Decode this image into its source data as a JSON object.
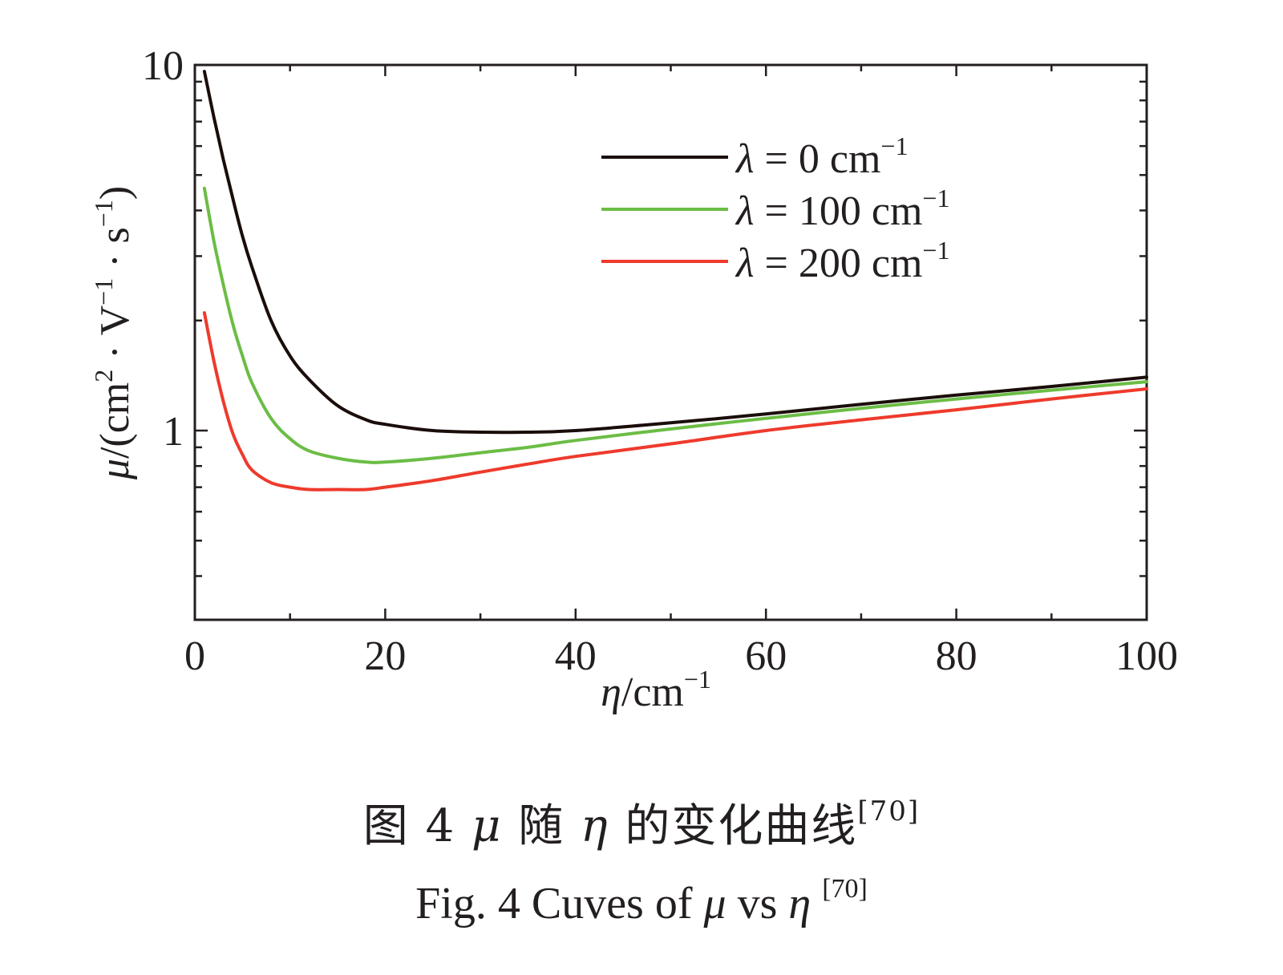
{
  "chart_data": {
    "type": "line",
    "xlabel": {
      "symbol": "η",
      "unit": "/cm",
      "exp": "−1"
    },
    "ylabel": {
      "symbol": "μ",
      "prefix": "/(cm",
      "exp2": "2",
      "mid1": " · V",
      "exp_v": "−1",
      "mid2": " · s",
      "exp_s": "−1",
      "suffix": ")"
    },
    "xlim": [
      0,
      100
    ],
    "ylim": [
      0.32,
      10
    ],
    "y_scale": "log",
    "x_ticks": [
      "0",
      "20",
      "40",
      "60",
      "80",
      "100"
    ],
    "y_ticks": [
      "10",
      "1"
    ],
    "grid": false,
    "legend_position": "top-right",
    "series": [
      {
        "name": "λ = 0 cm−1",
        "legend": {
          "lambda": "λ",
          "eq": " = 0 cm",
          "exp": "−1"
        },
        "color": "#1a0d0a",
        "x": [
          1,
          2,
          3,
          4,
          5,
          6,
          8,
          10,
          12,
          15,
          18,
          20,
          25,
          30,
          35,
          40,
          50,
          60,
          70,
          80,
          90,
          100
        ],
        "y": [
          9.6,
          7.2,
          5.5,
          4.3,
          3.4,
          2.8,
          2.0,
          1.6,
          1.38,
          1.17,
          1.07,
          1.04,
          1.0,
          0.99,
          0.99,
          1.0,
          1.05,
          1.11,
          1.18,
          1.25,
          1.32,
          1.4
        ]
      },
      {
        "name": "λ = 100 cm−1",
        "legend": {
          "lambda": "λ",
          "eq": " = 100 cm",
          "exp": "−1"
        },
        "color": "#6bbd45",
        "x": [
          1,
          2,
          3,
          4,
          5,
          6,
          8,
          10,
          12,
          15,
          18,
          20,
          25,
          30,
          35,
          40,
          50,
          60,
          70,
          80,
          90,
          100
        ],
        "y": [
          4.6,
          3.3,
          2.5,
          1.95,
          1.6,
          1.35,
          1.08,
          0.95,
          0.88,
          0.84,
          0.82,
          0.82,
          0.84,
          0.87,
          0.9,
          0.94,
          1.01,
          1.08,
          1.15,
          1.22,
          1.29,
          1.36
        ]
      },
      {
        "name": "λ = 200 cm−1",
        "legend": {
          "lambda": "λ",
          "eq": " = 200 cm",
          "exp": "−1"
        },
        "color": "#ee3a2c",
        "x": [
          1,
          2,
          3,
          4,
          5,
          6,
          8,
          10,
          12,
          15,
          18,
          20,
          25,
          30,
          35,
          40,
          50,
          60,
          70,
          80,
          90,
          100
        ],
        "y": [
          2.1,
          1.55,
          1.2,
          0.98,
          0.86,
          0.78,
          0.72,
          0.7,
          0.69,
          0.69,
          0.69,
          0.7,
          0.73,
          0.77,
          0.81,
          0.85,
          0.92,
          1.0,
          1.07,
          1.14,
          1.22,
          1.3
        ]
      }
    ]
  },
  "caption_cn": {
    "prefix": "图 4   ",
    "mu": "μ",
    "mid": " 随 ",
    "eta": "η",
    "suffix": " 的变化曲线",
    "ref": "[70]"
  },
  "caption_en": {
    "prefix": "Fig. 4  Cuves of ",
    "mu": "μ",
    "mid": " vs ",
    "eta": "η",
    "ref": "[70]"
  }
}
